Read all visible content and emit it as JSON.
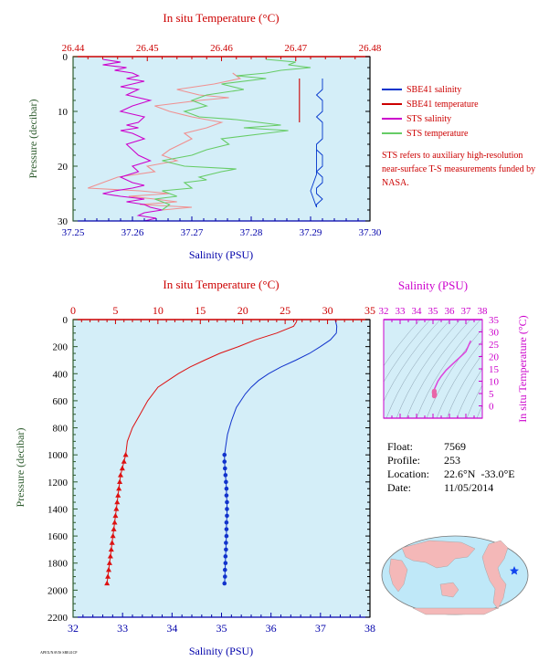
{
  "chart_data": [
    {
      "type": "line",
      "top_axis_title": "In situ Temperature (°C)",
      "bottom_axis_title": "Salinity (PSU)",
      "left_axis_title": "Pressure (decibar)",
      "x_bottom": {
        "min": 37.25,
        "max": 37.3,
        "ticks": [
          "37.25",
          "37.26",
          "37.27",
          "37.28",
          "37.29",
          "37.30"
        ]
      },
      "x_top": {
        "min": 26.44,
        "max": 26.48,
        "ticks": [
          "26.44",
          "26.45",
          "26.46",
          "26.47",
          "26.48"
        ]
      },
      "y": {
        "min": 0,
        "max": 30,
        "ticks": [
          "0",
          "10",
          "20",
          "30"
        ],
        "inverted": true
      },
      "series": [
        {
          "name": "SBE41 salinity",
          "color": "#0033cc",
          "axis": "bottom",
          "x": [
            37.292,
            37.292,
            37.292,
            37.291,
            37.292,
            37.292,
            37.292,
            37.291,
            37.292,
            37.292,
            37.292,
            37.292,
            37.291,
            37.291,
            37.292,
            37.292,
            37.292,
            37.291,
            37.292,
            37.292,
            37.291,
            37.291,
            37.292,
            37.291,
            37.291,
            37.29,
            37.291,
            37.291,
            37.291
          ],
          "y": [
            4,
            5,
            6,
            7,
            8,
            9,
            10,
            11,
            12,
            13,
            14,
            15,
            16,
            17,
            18,
            19,
            20,
            21,
            22,
            23,
            24,
            25,
            26,
            27,
            27.5,
            24.5,
            21.5,
            18.5,
            16
          ]
        },
        {
          "name": "SBE41 temperature",
          "color": "#cc0000",
          "axis": "top",
          "x": [
            26.4705,
            26.4705,
            26.4705,
            26.4705,
            26.4705
          ],
          "y": [
            4,
            6,
            8,
            10,
            12
          ]
        },
        {
          "name": "STS salinity",
          "color": "#cc00cc",
          "axis": "bottom",
          "x": [
            37.255,
            37.258,
            37.255,
            37.259,
            37.257,
            37.26,
            37.261,
            37.259,
            37.262,
            37.26,
            37.258,
            37.261,
            37.259,
            37.263,
            37.26,
            37.258,
            37.262,
            37.261,
            37.259,
            37.261,
            37.258,
            37.26,
            37.262,
            37.259,
            37.26,
            37.261,
            37.263,
            37.26,
            37.261,
            37.258,
            37.26,
            37.262,
            37.26,
            37.257,
            37.255,
            37.258,
            37.262,
            37.259,
            37.262,
            37.263,
            37.265,
            37.262,
            37.261,
            37.264,
            37.262
          ],
          "y": [
            0.5,
            1,
            1.5,
            2,
            2.5,
            3,
            3.5,
            4,
            4.5,
            5,
            5.5,
            6,
            7,
            8,
            9,
            10,
            11,
            12,
            12.5,
            13,
            13.5,
            14,
            15,
            16,
            17,
            18,
            19,
            20,
            21,
            22,
            23,
            23.5,
            24,
            24.5,
            25,
            25.5,
            26,
            26.5,
            27,
            27.5,
            28,
            28.5,
            29,
            29.5,
            30
          ]
        },
        {
          "name": "STS temperature",
          "color": "#66cc66",
          "axis": "top",
          "x": [
            26.466,
            26.47,
            26.469,
            26.472,
            26.468,
            26.466,
            26.462,
            26.466,
            26.46,
            26.463,
            26.458,
            26.456,
            26.458,
            26.455,
            26.457,
            26.462,
            26.465,
            26.468,
            26.463,
            26.469,
            26.466,
            26.46,
            26.461,
            26.458,
            26.456,
            26.452,
            26.455,
            26.462,
            26.46,
            26.457,
            26.458,
            26.455,
            26.456,
            26.452,
            26.453,
            26.454,
            26.451,
            26.452,
            26.453,
            26.452
          ],
          "y": [
            0.5,
            1,
            1.5,
            2,
            2.5,
            3,
            3.5,
            4,
            5,
            6,
            7,
            8,
            9,
            10,
            11,
            11.5,
            12,
            12.5,
            13,
            13.5,
            14,
            15,
            16,
            17,
            18,
            19,
            20,
            20.5,
            21,
            22,
            22.5,
            23,
            24,
            24.5,
            25,
            25.5,
            26,
            26.5,
            27,
            28
          ]
        },
        {
          "name": "",
          "color": "#f09090",
          "axis": "top",
          "x": [
            26.4615,
            26.4625,
            26.459,
            26.454,
            26.457,
            26.461,
            26.457,
            26.451,
            26.453,
            26.456,
            26.46,
            26.458,
            26.455,
            26.456,
            26.453,
            26.452,
            26.454,
            26.45,
            26.451,
            26.446,
            26.442,
            26.449,
            26.453,
            26.4475,
            26.451,
            26.454,
            26.449,
            26.456,
            26.452
          ],
          "y": [
            3,
            4,
            5,
            6,
            7,
            7.5,
            8,
            9,
            10,
            11,
            12,
            13,
            14,
            15,
            17,
            18,
            19,
            20,
            21,
            22,
            24,
            24.5,
            25,
            25.5,
            26,
            26.5,
            27,
            27.5,
            28
          ]
        }
      ],
      "legend_placement": "right"
    },
    {
      "type": "line",
      "top_axis_title": "In situ Temperature (°C)",
      "bottom_axis_title": "Salinity (PSU)",
      "left_axis_title": "Pressure (decibar)",
      "x_bottom": {
        "min": 32,
        "max": 38,
        "ticks": [
          "32",
          "33",
          "34",
          "35",
          "36",
          "37",
          "38"
        ]
      },
      "x_top": {
        "min": 0,
        "max": 35,
        "ticks": [
          "0",
          "5",
          "10",
          "15",
          "20",
          "25",
          "30",
          "35"
        ]
      },
      "y": {
        "min": 0,
        "max": 2200,
        "ticks": [
          "0",
          "200",
          "400",
          "600",
          "800",
          "1000",
          "1200",
          "1400",
          "1600",
          "1800",
          "2000",
          "2200"
        ],
        "inverted": true
      },
      "series": [
        {
          "name": "Temperature",
          "color": "#dd1111",
          "axis": "top",
          "marker": "triangle",
          "marker_from_y": 1000,
          "x": [
            26.4,
            26.3,
            26.0,
            24.0,
            21.5,
            19.5,
            17.3,
            15.5,
            13.8,
            12.4,
            11.2,
            10.0,
            8.8,
            7.9,
            7.0,
            6.4,
            6.2,
            6.0,
            5.8,
            5.6,
            5.5,
            5.4,
            5.3,
            5.2,
            5.1,
            5.0,
            4.9,
            4.8,
            4.7,
            4.6,
            4.5,
            4.4,
            4.3,
            4.2,
            4.1,
            4.0
          ],
          "y": [
            5,
            20,
            50,
            100,
            150,
            200,
            250,
            300,
            350,
            400,
            450,
            500,
            600,
            700,
            800,
            900,
            1000,
            1050,
            1100,
            1150,
            1200,
            1250,
            1300,
            1350,
            1400,
            1450,
            1500,
            1550,
            1600,
            1650,
            1700,
            1750,
            1800,
            1850,
            1900,
            1950
          ]
        },
        {
          "name": "Salinity",
          "color": "#1133cc",
          "axis": "bottom",
          "marker": "circle",
          "marker_from_y": 1000,
          "x": [
            37.3,
            37.33,
            37.32,
            37.2,
            37.0,
            36.78,
            36.5,
            36.2,
            35.95,
            35.75,
            35.6,
            35.48,
            35.3,
            35.2,
            35.12,
            35.08,
            35.06,
            35.06,
            35.07,
            35.08,
            35.09,
            35.1,
            35.1,
            35.11,
            35.11,
            35.11,
            35.1,
            35.1,
            35.1,
            35.09,
            35.09,
            35.08,
            35.08,
            35.07,
            35.07,
            35.06
          ],
          "y": [
            5,
            50,
            100,
            150,
            200,
            250,
            300,
            350,
            400,
            450,
            500,
            550,
            650,
            750,
            850,
            950,
            1000,
            1050,
            1100,
            1150,
            1200,
            1250,
            1300,
            1350,
            1400,
            1450,
            1500,
            1550,
            1600,
            1650,
            1700,
            1750,
            1800,
            1850,
            1900,
            1950
          ]
        }
      ]
    },
    {
      "type": "scatter",
      "top_axis_title": "Salinity (PSU)",
      "right_axis_title": "In situ Temperature (°C)",
      "x": {
        "min": 32,
        "max": 38,
        "ticks": [
          "32",
          "33",
          "34",
          "35",
          "36",
          "37",
          "38"
        ]
      },
      "y": {
        "min": -5,
        "max": 35,
        "ticks": [
          "0",
          "5",
          "10",
          "15",
          "20",
          "25",
          "30",
          "35"
        ]
      },
      "series": [
        {
          "name": "T-S",
          "color": "#dd44dd",
          "x": [
            37.3,
            37.2,
            37.0,
            36.6,
            36.2,
            35.8,
            35.5,
            35.3,
            35.2,
            35.1,
            35.08,
            35.07,
            35.08,
            35.09,
            35.1,
            35.1,
            35.09,
            35.08
          ],
          "y": [
            26.4,
            25.0,
            22.0,
            19.5,
            17.0,
            14.5,
            12.0,
            10.0,
            8.5,
            7.0,
            6.0,
            5.5,
            5.0,
            4.8,
            4.5,
            4.3,
            4.2,
            4.0
          ]
        }
      ]
    }
  ],
  "legend": [
    {
      "label": "SBE41 salinity",
      "color": "#0033cc"
    },
    {
      "label": "SBE41 temperature",
      "color": "#cc0000"
    },
    {
      "label": "STS salinity",
      "color": "#cc00cc"
    },
    {
      "label": "STS temperature",
      "color": "#66cc66"
    }
  ],
  "note": "STS refers to auxiliary high-resolution near-surface T-S measurements funded by NASA.",
  "info": {
    "float_label": "Float:",
    "float_value": "7569",
    "profile_label": "Profile:",
    "profile_value": "253",
    "location_label": "Location:",
    "location_value": "22.6°N  -33.0°E",
    "date_label": "Date:",
    "date_value": "11/05/2014"
  },
  "tiny_text": "APEX/NAVIS  SBE41CP",
  "colors": {
    "plot_bg": "#d4eef8",
    "temp_axis": "#cc0000",
    "sal_axis": "#0000aa",
    "pressure_axis": "#2e5c2e",
    "map_land": "#f4b8b8",
    "map_ocean": "#bfe8f8"
  }
}
